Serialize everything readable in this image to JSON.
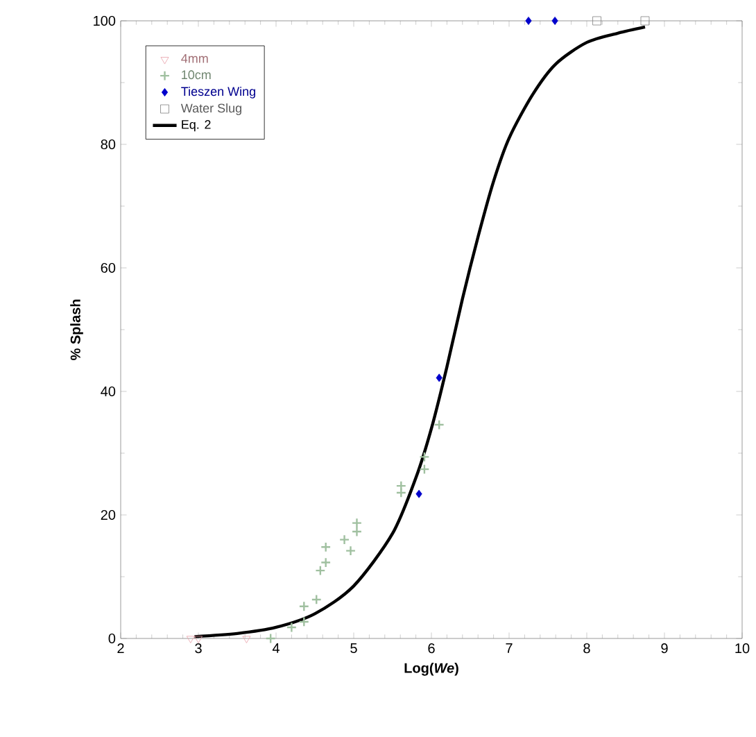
{
  "chart_data": {
    "type": "scatter",
    "xlabel": "Log(*We*)",
    "ylabel": "% Splash",
    "xlim": [
      2,
      10
    ],
    "ylim": [
      0,
      100
    ],
    "xticks": [
      2,
      3,
      4,
      5,
      6,
      7,
      8,
      9,
      10
    ],
    "yticks": [
      0,
      20,
      40,
      60,
      80,
      100
    ],
    "grid": false,
    "legend": "top left",
    "series": [
      {
        "name": "4mm",
        "color": "#e8a0a8",
        "marker": "triangle",
        "x": [
          2.9,
          3.0,
          3.62
        ],
        "values": [
          0,
          0,
          0
        ]
      },
      {
        "name": "10cm",
        "color": "#a0c0a0",
        "marker": "cross",
        "x": [
          3.93,
          4.2,
          4.36,
          4.36,
          4.52,
          4.57,
          4.64,
          4.64,
          4.88,
          4.96,
          5.04,
          5.04,
          5.61,
          5.61,
          5.91,
          5.91,
          6.1
        ],
        "values": [
          0,
          1.8,
          2.7,
          5.2,
          6.3,
          11,
          12.3,
          14.8,
          16,
          14.2,
          17.3,
          18.7,
          24.7,
          23.6,
          27.4,
          29.4,
          34.6
        ]
      },
      {
        "name": "Tieszen Wing",
        "color": "#0000cc",
        "marker": "diamond",
        "x": [
          5.84,
          6.1,
          7.25,
          7.59
        ],
        "values": [
          23.4,
          42.2,
          100,
          100
        ]
      },
      {
        "name": "Water Slug",
        "color": "#808080",
        "marker": "square",
        "x": [
          8.13,
          8.75
        ],
        "values": [
          100,
          100
        ]
      },
      {
        "name": "Eq. 2",
        "color": "#000000",
        "type": "line",
        "marker": "none",
        "x": [
          2.95,
          3.5,
          4,
          4.5,
          5,
          5.5,
          5.8,
          6.0,
          6.2,
          6.4,
          6.6,
          6.8,
          7.0,
          7.3,
          7.6,
          8.0,
          8.4,
          8.75
        ],
        "values": [
          0.3,
          0.8,
          1.8,
          4,
          8.5,
          17,
          26,
          34,
          44,
          55,
          65,
          74,
          81,
          88,
          93,
          96.5,
          98,
          99
        ]
      }
    ]
  }
}
